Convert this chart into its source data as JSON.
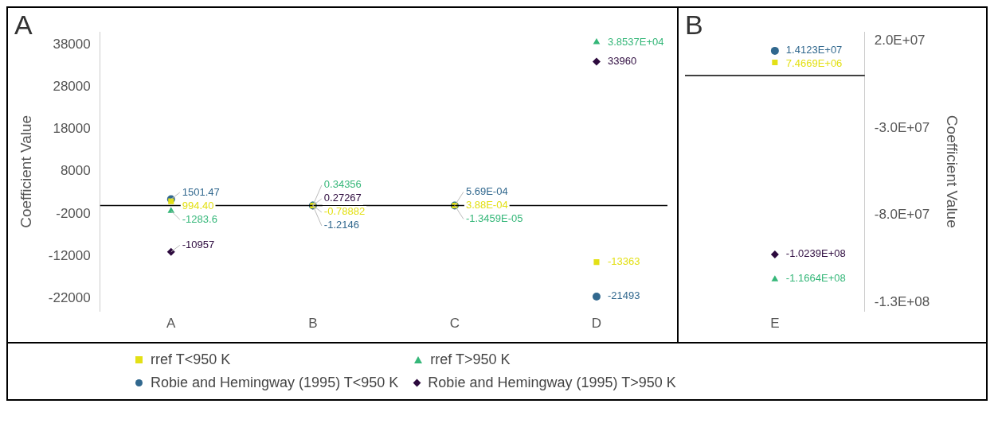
{
  "chart_data": [
    {
      "type": "scatter",
      "title": "A",
      "ylabel": "Coefficient Value",
      "categories": [
        "A",
        "B",
        "C",
        "D"
      ],
      "ylim": [
        -25000,
        41000
      ],
      "yticks": [
        -22000,
        -12000,
        -2000,
        8000,
        18000,
        28000,
        38000
      ],
      "grid": false,
      "legend": "bottom",
      "ref_lines": [
        {
          "axis": "y",
          "value": 0,
          "color": "#000000"
        }
      ],
      "series": [
        {
          "name": "rref T<950 K",
          "color": "#e3e016",
          "marker": "square",
          "values": [
            994.4,
            -0.78882,
            0.000388,
            -13363
          ],
          "value_labels": [
            "994.40",
            "-0.78882",
            "3.88E-04",
            "-13363"
          ]
        },
        {
          "name": "rref T>950 K",
          "color": "#35b779",
          "marker": "triangle",
          "values": [
            -1283.6,
            0.34356,
            -1.3459e-05,
            38537
          ],
          "value_labels": [
            "-1283.6",
            "0.34356",
            "-1.3459E-05",
            "3.8537E+04"
          ]
        },
        {
          "name": "Robie and Hemingway (1995) T<950 K",
          "color": "#31688e",
          "marker": "circle",
          "values": [
            1501.47,
            -1.2146,
            0.000569,
            -21493
          ],
          "value_labels": [
            "1501.47",
            "-1.2146",
            "5.69E-04",
            "-21493"
          ]
        },
        {
          "name": "Robie and Hemingway (1995) T>950 K",
          "color": "#2d0a3e",
          "marker": "diamond",
          "values": [
            -10957,
            0.27267,
            null,
            33960
          ],
          "value_labels": [
            "-10957",
            "0.27267",
            null,
            "33960"
          ]
        }
      ]
    },
    {
      "type": "scatter",
      "title": "B",
      "ylabel": "Coefficient Value",
      "categories": [
        "E"
      ],
      "ylim": [
        -135000000,
        25000000
      ],
      "yticks": [
        {
          "value": -130000000,
          "label": "-1.3E+08"
        },
        {
          "value": -80000000,
          "label": "-8.0E+07"
        },
        {
          "value": -30000000,
          "label": "-3.0E+07"
        },
        {
          "value": 20000000,
          "label": "2.0E+07"
        }
      ],
      "grid": false,
      "ref_lines": [
        {
          "axis": "y",
          "value": 0,
          "color": "#000000"
        }
      ],
      "series": [
        {
          "color": "#e3e016",
          "marker": "square",
          "values": [
            7466900
          ],
          "value_labels": [
            "7.4669E+06"
          ]
        },
        {
          "color": "#35b779",
          "marker": "triangle",
          "values": [
            -116640000
          ],
          "value_labels": [
            "-1.1664E+08"
          ]
        },
        {
          "color": "#31688e",
          "marker": "circle",
          "values": [
            14123000
          ],
          "value_labels": [
            "1.4123E+07"
          ]
        },
        {
          "color": "#2d0a3e",
          "marker": "diamond",
          "values": [
            -102390000
          ],
          "value_labels": [
            "-1.0239E+08"
          ]
        }
      ]
    }
  ]
}
